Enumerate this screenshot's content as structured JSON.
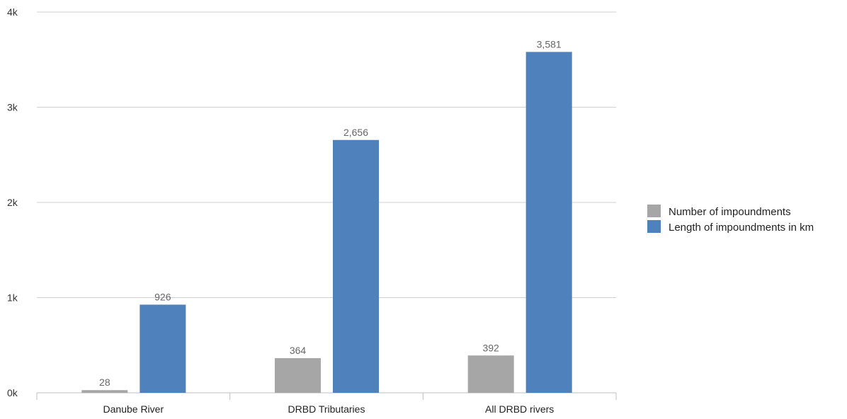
{
  "chart_data": {
    "type": "bar",
    "title": "",
    "xlabel": "",
    "ylabel": "",
    "categories": [
      "Danube River",
      "DRBD Tributaries",
      "All DRBD rivers"
    ],
    "series": [
      {
        "name": "Number of impoundments",
        "color": "#a6a6a6",
        "values": [
          28,
          364,
          392
        ],
        "labels": [
          "28",
          "364",
          "392"
        ]
      },
      {
        "name": "Length of impoundments in km",
        "color": "#4f81bd",
        "values": [
          926,
          2656,
          3581
        ],
        "labels": [
          "926",
          "2,656",
          "3,581"
        ]
      }
    ],
    "ylim": [
      0,
      4000
    ],
    "yticks": [
      {
        "value": 0,
        "label": "0k"
      },
      {
        "value": 1000,
        "label": "1k"
      },
      {
        "value": 2000,
        "label": "2k"
      },
      {
        "value": 3000,
        "label": "3k"
      },
      {
        "value": 4000,
        "label": "4k"
      }
    ],
    "grid": true,
    "legend_position": "right"
  }
}
